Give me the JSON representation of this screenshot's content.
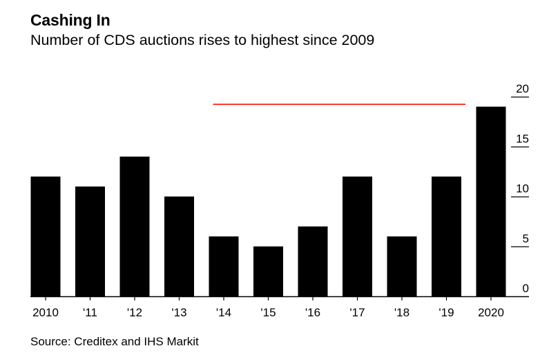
{
  "title": "Cashing In",
  "subtitle": "Number of CDS auctions rises to highest since 2009",
  "source": "Source: Creditex and IHS Markit",
  "chart_data": {
    "type": "bar",
    "categories": [
      "2010",
      "'11",
      "'12",
      "'13",
      "'14",
      "'15",
      "'16",
      "'17",
      "'18",
      "'19",
      "2020"
    ],
    "values": [
      12,
      11,
      14,
      10,
      6,
      5,
      7,
      12,
      6,
      12,
      19
    ],
    "ylim": [
      0,
      20
    ],
    "yticks": [
      0,
      5,
      10,
      15,
      20
    ],
    "y_axis_position": "right",
    "grid": false,
    "bar_color": "#000000",
    "reference_line": {
      "value": 19,
      "from_category": "'14",
      "to_category": "'19",
      "color": "#ff3b30"
    }
  }
}
